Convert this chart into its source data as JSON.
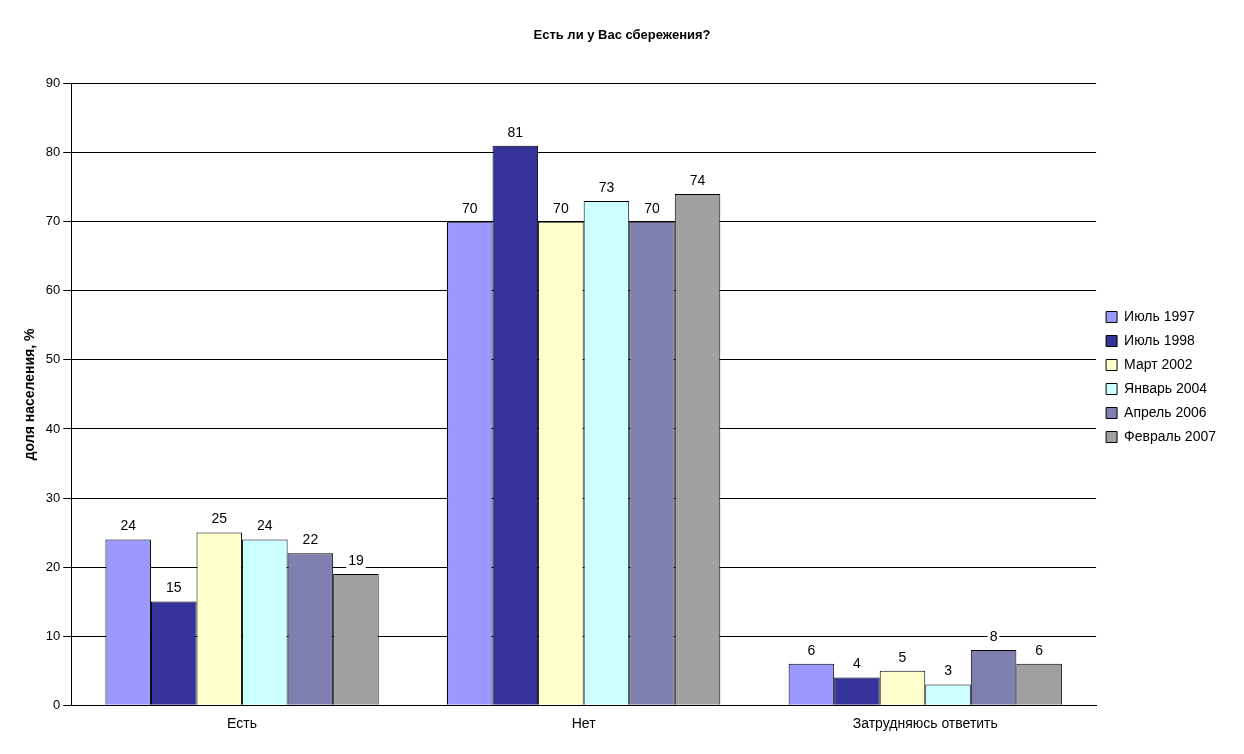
{
  "chart_data": {
    "type": "bar",
    "title": "Есть ли у Вас сбережения?",
    "ylabel": "доля населения, %",
    "categories": [
      "Есть",
      "Нет",
      "Затрудняюсь ответить"
    ],
    "series": [
      {
        "name": "Июль 1997",
        "color": "#9999ff",
        "values": [
          24,
          70,
          6
        ]
      },
      {
        "name": "Июль 1998",
        "color": "#333399",
        "values": [
          15,
          81,
          4
        ]
      },
      {
        "name": "Март 2002",
        "color": "#ffffcc",
        "values": [
          25,
          70,
          5
        ]
      },
      {
        "name": "Январь 2004",
        "color": "#ccffff",
        "values": [
          24,
          73,
          3
        ]
      },
      {
        "name": "Апрель 2006",
        "color": "#8080b0",
        "values": [
          22,
          70,
          8
        ]
      },
      {
        "name": "Февраль 2007",
        "color": "#a0a0a0",
        "values": [
          19,
          74,
          6
        ]
      }
    ],
    "ylim": [
      0,
      90
    ],
    "yticks": [
      0,
      10,
      20,
      30,
      40,
      50,
      60,
      70,
      80,
      90
    ],
    "grid": "y",
    "legend": "right",
    "data_labels": true
  }
}
